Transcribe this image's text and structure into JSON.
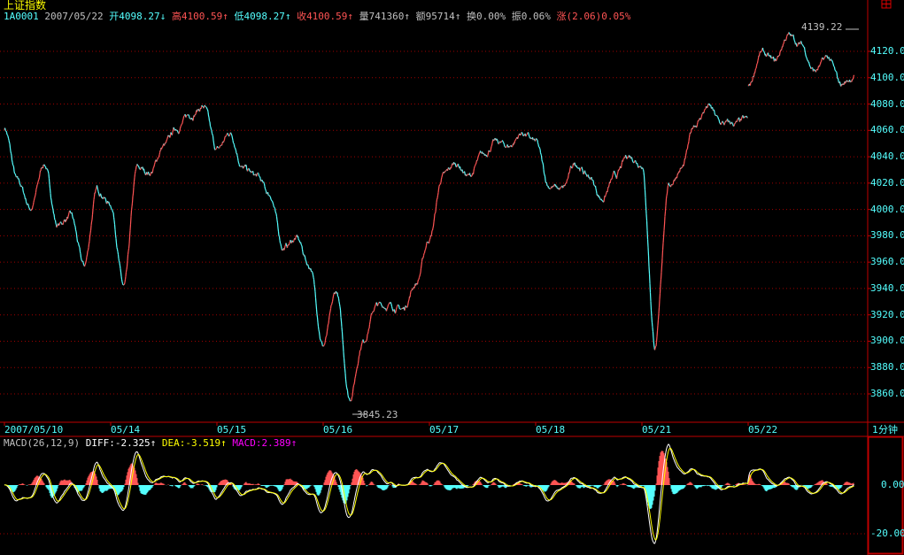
{
  "header": {
    "index_name": "上证指数",
    "code": "1A0001",
    "date": "2007/05/22",
    "open_label": "开",
    "open": "4098.27",
    "open_arrow": "↓",
    "high_label": "高",
    "high": "4100.59",
    "high_arrow": "↑",
    "low_label": "低",
    "low": "4098.27",
    "low_arrow": "↑",
    "close_label": "收",
    "close": "4100.59",
    "close_arrow": "↑",
    "volume_label": "量",
    "volume": "741360",
    "volume_arrow": "↑",
    "amount_label": "额",
    "amount": "95714",
    "amount_arrow": "↑",
    "turnover_label": "换",
    "turnover": "0.00%",
    "amplitude_label": "振",
    "amplitude": "0.06%",
    "change_label": "涨",
    "change": "(2.06)0.05%"
  },
  "period_label": "1分钟",
  "corner_icon": "calendar-box-icon",
  "colors": {
    "up": "#ff5454",
    "down": "#54ffff",
    "grid": "#a00000",
    "diff": "#ffffff",
    "dea": "#ffff00",
    "macd": "#ff00ff"
  },
  "chart_data": [
    {
      "type": "line",
      "title": "上证指数",
      "period": "1分钟",
      "x_tick_labels": [
        "2007/05/10",
        "05/14",
        "05/15",
        "05/16",
        "05/17",
        "05/18",
        "05/21",
        "05/22"
      ],
      "y_tick_labels": [
        "4120.00",
        "4100.00",
        "4080.00",
        "4060.00",
        "4040.00",
        "4020.00",
        "4000.00",
        "3980.00",
        "3960.00",
        "3940.00",
        "3920.00",
        "3900.00",
        "3880.00",
        "3860.00"
      ],
      "ylim": [
        3845,
        4142
      ],
      "grid": true,
      "max_label": "4139.22",
      "min_label": "3845.23",
      "sample_interval": "30 min",
      "days": [
        {
          "date": "05/10",
          "prices": [
            4062,
            4021,
            4001,
            4035,
            3988,
            3995,
            3957,
            4015,
            4004
          ]
        },
        {
          "date": "05/14",
          "prices": [
            4004,
            3941,
            4031,
            4028,
            4048,
            4062,
            4072,
            4078,
            4045
          ]
        },
        {
          "date": "05/15",
          "prices": [
            4045,
            4058,
            4031,
            4025,
            4011,
            3971,
            3978,
            3957,
            3897
          ]
        },
        {
          "date": "05/16",
          "prices": [
            3897,
            3937,
            3857,
            3900,
            3927,
            3927,
            3924,
            3944,
            3978
          ]
        },
        {
          "date": "05/17",
          "prices": [
            3978,
            4025,
            4035,
            4025,
            4041,
            4051,
            4048,
            4058,
            4051
          ]
        },
        {
          "date": "05/18",
          "prices": [
            4051,
            4018,
            4015,
            4035,
            4025,
            4008,
            4025,
            4041,
            4035
          ]
        },
        {
          "date": "05/21",
          "prices": [
            4035,
            3896,
            4018,
            4031,
            4065,
            4078,
            4065,
            4065,
            4068
          ]
        },
        {
          "date": "05/22",
          "prices": [
            4092,
            4119,
            4112,
            4132,
            4125,
            4105,
            4115,
            4095,
            4100.59
          ]
        }
      ]
    },
    {
      "type": "bar",
      "indicator": "MACD",
      "params_label": "MACD(26,12,9)",
      "diff_label": "DIFF:",
      "diff": "-2.325",
      "diff_arrow": "↑",
      "dea_label": "DEA:",
      "dea": "-3.519",
      "dea_arrow": "↑",
      "macd_label": "MACD:",
      "macd": "2.389",
      "macd_arrow": "↑",
      "y_tick_labels": [
        "0.00",
        "-20.00"
      ],
      "ylim": [
        -28,
        20
      ]
    }
  ]
}
